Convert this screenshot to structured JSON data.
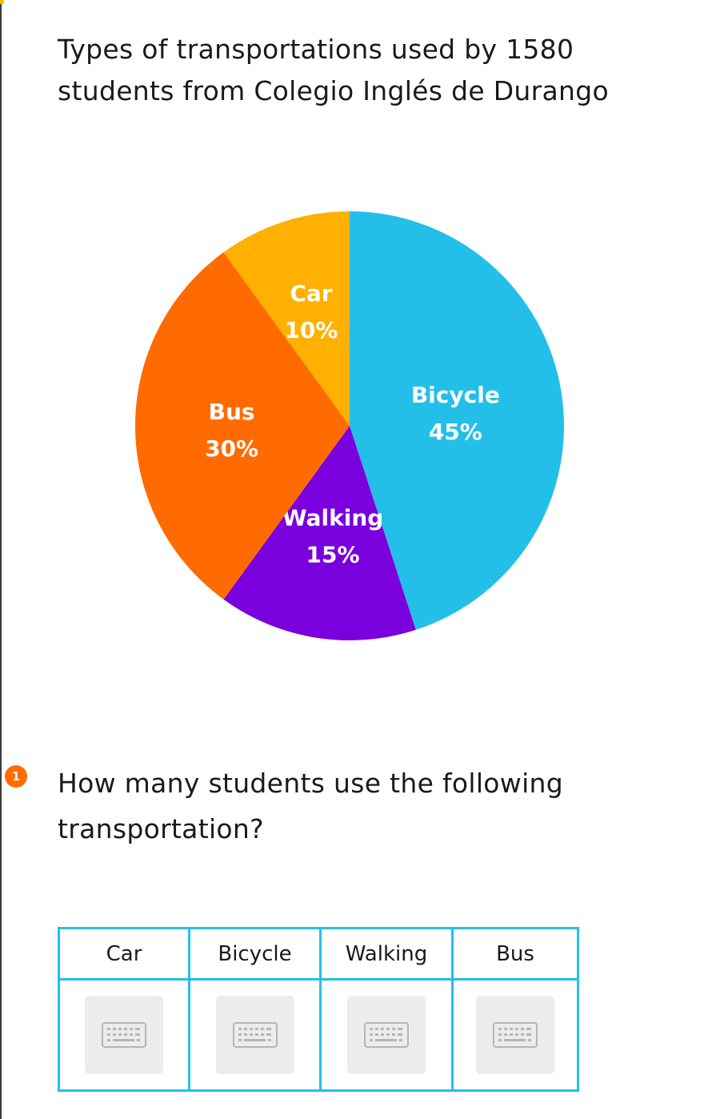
{
  "title_lines": [
    "Types of transportations used by 1580",
    "students from Colegio Inglés de Durango"
  ],
  "chart_data": {
    "type": "pie",
    "title": "Types of transportations used by 1580 students from Colegio Inglés de Durango",
    "total": 1580,
    "slices": [
      {
        "label": "Bicycle",
        "value": 45,
        "display": "45%",
        "color": "#24bfe9"
      },
      {
        "label": "Walking",
        "value": 15,
        "display": "15%",
        "color": "#7a00de"
      },
      {
        "label": "Bus",
        "value": 30,
        "display": "30%",
        "color": "#ff6b00"
      },
      {
        "label": "Car",
        "value": 10,
        "display": "10%",
        "color": "#ffb000"
      }
    ],
    "start": "12 o'clock",
    "direction": "clockwise",
    "legend": "none",
    "labels": "inside"
  },
  "question": {
    "number": "1",
    "lines": [
      "How many students use the following",
      "transportation?"
    ],
    "badge_color": "#ff6b00"
  },
  "table": {
    "headers": [
      "Car",
      "Bicycle",
      "Walking",
      "Bus"
    ],
    "border_color": "#24bfe9",
    "inputs": [
      {
        "value": "",
        "icon": "keyboard-icon"
      },
      {
        "value": "",
        "icon": "keyboard-icon"
      },
      {
        "value": "",
        "icon": "keyboard-icon"
      },
      {
        "value": "",
        "icon": "keyboard-icon"
      }
    ]
  }
}
